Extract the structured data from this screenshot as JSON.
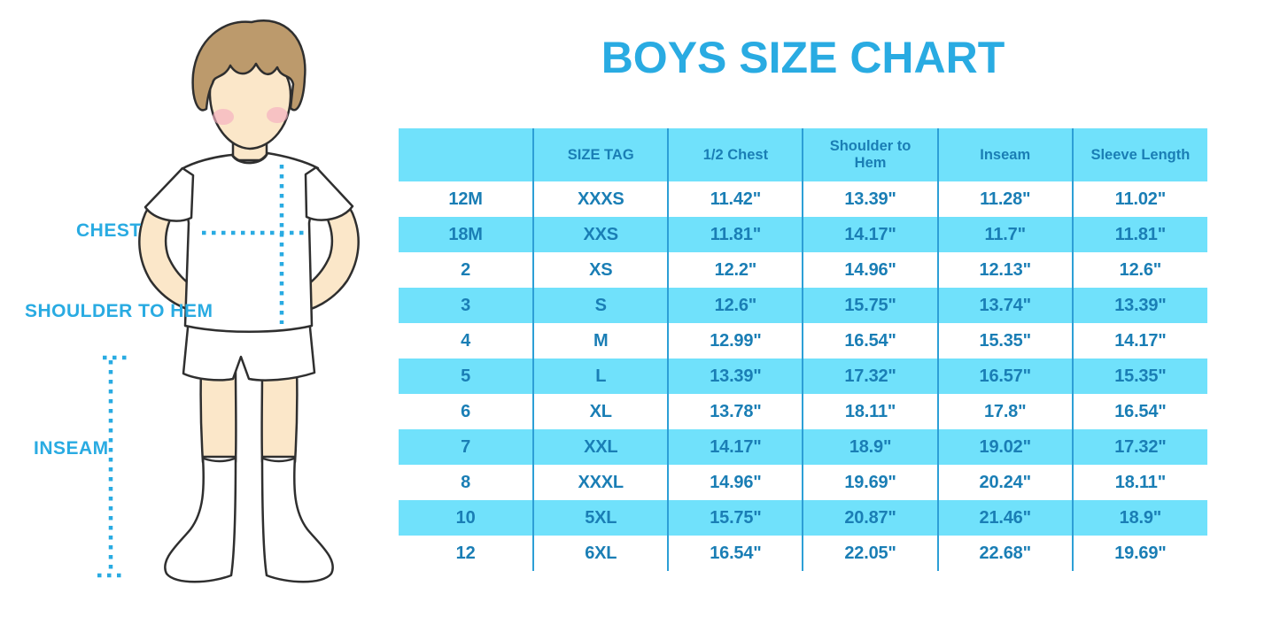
{
  "page": {
    "title": "BOYS SIZE CHART"
  },
  "figure": {
    "illustration": "boy-in-white-tshirt-shorts-and-knee-socks",
    "labels": {
      "chest": "CHEST",
      "shoulder_to_hem": "SHOULDER TO HEM",
      "inseam": "INSEAM"
    }
  },
  "colors": {
    "accent_blue": "#29ABE2",
    "band_cyan": "#70E1FB",
    "table_text_blue": "#1A7EB5",
    "divider_blue": "#2D9FD6",
    "skin": "#FBE7C9",
    "hair_brown": "#BC9A6C",
    "blush_pink": "#F4AEC0"
  },
  "chart_data": {
    "type": "table",
    "title": "BOYS SIZE CHART",
    "columns": [
      "",
      "SIZE TAG",
      "1/2 Chest",
      "Shoulder to Hem",
      "Inseam",
      "Sleeve Length"
    ],
    "rows": [
      [
        "12M",
        "XXXS",
        "11.42\"",
        "13.39\"",
        "11.28\"",
        "11.02\""
      ],
      [
        "18M",
        "XXS",
        "11.81\"",
        "14.17\"",
        "11.7\"",
        "11.81\""
      ],
      [
        "2",
        "XS",
        "12.2\"",
        "14.96\"",
        "12.13\"",
        "12.6\""
      ],
      [
        "3",
        "S",
        "12.6\"",
        "15.75\"",
        "13.74\"",
        "13.39\""
      ],
      [
        "4",
        "M",
        "12.99\"",
        "16.54\"",
        "15.35\"",
        "14.17\""
      ],
      [
        "5",
        "L",
        "13.39\"",
        "17.32\"",
        "16.57\"",
        "15.35\""
      ],
      [
        "6",
        "XL",
        "13.78\"",
        "18.11\"",
        "17.8\"",
        "16.54\""
      ],
      [
        "7",
        "XXL",
        "14.17\"",
        "18.9\"",
        "19.02\"",
        "17.32\""
      ],
      [
        "8",
        "XXXL",
        "14.96\"",
        "19.69\"",
        "20.24\"",
        "18.11\""
      ],
      [
        "10",
        "5XL",
        "15.75\"",
        "20.87\"",
        "21.46\"",
        "18.9\""
      ],
      [
        "12",
        "6XL",
        "16.54\"",
        "22.05\"",
        "22.68\"",
        "19.69\""
      ]
    ],
    "highlighted_row_indices": [
      1,
      3,
      5,
      7,
      9
    ],
    "header_row_highlighted": true,
    "legend_position": "none",
    "grid": "vertical-dividers-only"
  }
}
